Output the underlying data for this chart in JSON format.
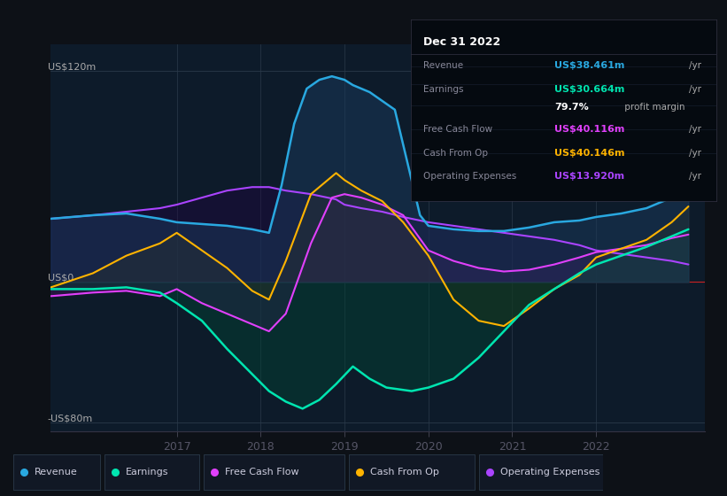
{
  "bg_color": "#0d1117",
  "chart_bg": "#0d1b2a",
  "ylim": [
    -85,
    135
  ],
  "xlim": [
    2015.5,
    2023.3
  ],
  "x_ticks": [
    2017,
    2018,
    2019,
    2020,
    2021,
    2022
  ],
  "y_labels": [
    {
      "y": 120,
      "label": "US$120m"
    },
    {
      "y": 0,
      "label": "US$0"
    },
    {
      "y": -80,
      "label": "-US$80m"
    }
  ],
  "series": {
    "revenue": {
      "x": [
        2015.5,
        2016.0,
        2016.4,
        2016.8,
        2017.0,
        2017.3,
        2017.6,
        2017.9,
        2018.1,
        2018.25,
        2018.4,
        2018.55,
        2018.7,
        2018.85,
        2019.0,
        2019.1,
        2019.3,
        2019.6,
        2019.9,
        2020.0,
        2020.3,
        2020.6,
        2020.9,
        2021.2,
        2021.5,
        2021.8,
        2022.0,
        2022.3,
        2022.6,
        2022.9,
        2023.1
      ],
      "y": [
        36,
        38,
        39,
        36,
        34,
        33,
        32,
        30,
        28,
        55,
        90,
        110,
        115,
        117,
        115,
        112,
        108,
        98,
        38,
        32,
        30,
        29,
        29,
        31,
        34,
        35,
        37,
        39,
        42,
        48,
        52
      ],
      "line_color": "#29a8e0",
      "fill_color": "#1a3a5c",
      "fill_alpha": 0.5,
      "lw": 1.8
    },
    "earnings": {
      "x": [
        2015.5,
        2016.0,
        2016.4,
        2016.8,
        2017.0,
        2017.3,
        2017.6,
        2017.85,
        2018.1,
        2018.3,
        2018.5,
        2018.7,
        2018.9,
        2019.1,
        2019.3,
        2019.5,
        2019.8,
        2020.0,
        2020.3,
        2020.6,
        2020.9,
        2021.2,
        2021.5,
        2021.8,
        2022.0,
        2022.3,
        2022.6,
        2022.9,
        2023.1
      ],
      "y": [
        -4,
        -4,
        -3,
        -6,
        -12,
        -22,
        -38,
        -50,
        -62,
        -68,
        -72,
        -67,
        -58,
        -48,
        -55,
        -60,
        -62,
        -60,
        -55,
        -43,
        -28,
        -13,
        -4,
        5,
        10,
        15,
        20,
        26,
        30
      ],
      "line_color": "#00e5b0",
      "fill_color": "#004433",
      "fill_alpha": 0.45,
      "lw": 1.8
    },
    "free_cash_flow": {
      "x": [
        2015.5,
        2016.0,
        2016.4,
        2016.8,
        2017.0,
        2017.3,
        2017.6,
        2017.9,
        2018.1,
        2018.3,
        2018.6,
        2018.85,
        2019.0,
        2019.2,
        2019.45,
        2019.7,
        2020.0,
        2020.3,
        2020.6,
        2020.9,
        2021.2,
        2021.5,
        2021.8,
        2022.0,
        2022.3,
        2022.6,
        2022.9,
        2023.1
      ],
      "y": [
        -8,
        -6,
        -5,
        -8,
        -4,
        -12,
        -18,
        -24,
        -28,
        -18,
        22,
        48,
        50,
        48,
        44,
        38,
        18,
        12,
        8,
        6,
        7,
        10,
        14,
        17,
        19,
        21,
        25,
        27
      ],
      "line_color": "#e040fb",
      "fill_color": "#4a1060",
      "fill_alpha": 0.4,
      "lw": 1.5
    },
    "cash_from_op": {
      "x": [
        2015.5,
        2016.0,
        2016.4,
        2016.8,
        2017.0,
        2017.3,
        2017.6,
        2017.9,
        2018.1,
        2018.3,
        2018.6,
        2018.9,
        2019.0,
        2019.2,
        2019.45,
        2019.7,
        2020.0,
        2020.3,
        2020.6,
        2020.9,
        2021.2,
        2021.5,
        2021.8,
        2022.0,
        2022.3,
        2022.6,
        2022.9,
        2023.1
      ],
      "y": [
        -3,
        5,
        15,
        22,
        28,
        18,
        8,
        -5,
        -10,
        12,
        50,
        62,
        58,
        52,
        46,
        34,
        15,
        -10,
        -22,
        -25,
        -15,
        -4,
        4,
        14,
        19,
        24,
        34,
        43
      ],
      "line_color": "#ffb300",
      "fill_color": "#3a2800",
      "fill_alpha": 0.4,
      "lw": 1.5
    },
    "operating_expenses": {
      "x": [
        2015.5,
        2016.0,
        2016.4,
        2016.8,
        2017.0,
        2017.3,
        2017.6,
        2017.9,
        2018.1,
        2018.3,
        2018.6,
        2018.9,
        2019.0,
        2019.2,
        2019.45,
        2019.7,
        2020.0,
        2020.3,
        2020.6,
        2020.9,
        2021.2,
        2021.5,
        2021.8,
        2022.0,
        2022.3,
        2022.6,
        2022.9,
        2023.1
      ],
      "y": [
        36,
        38,
        40,
        42,
        44,
        48,
        52,
        54,
        54,
        52,
        50,
        47,
        44,
        42,
        40,
        37,
        34,
        32,
        30,
        28,
        26,
        24,
        21,
        18,
        16,
        14,
        12,
        10
      ],
      "line_color": "#aa44ff",
      "fill_color": "#220044",
      "fill_alpha": 0.35,
      "lw": 1.5
    }
  },
  "legend": [
    {
      "label": "Revenue",
      "color": "#29a8e0"
    },
    {
      "label": "Earnings",
      "color": "#00e5b0"
    },
    {
      "label": "Free Cash Flow",
      "color": "#e040fb"
    },
    {
      "label": "Cash From Op",
      "color": "#ffb300"
    },
    {
      "label": "Operating Expenses",
      "color": "#aa44ff"
    }
  ],
  "infobox": {
    "title": "Dec 31 2022",
    "rows": [
      {
        "label": "Revenue",
        "value": "US$38.461m",
        "unit": "/yr",
        "val_color": "#29a8e0"
      },
      {
        "label": "Earnings",
        "value": "US$30.664m",
        "unit": "/yr",
        "val_color": "#00e5b0"
      },
      {
        "label": "",
        "value": "79.7%",
        "unit": " profit margin",
        "val_color": "#ffffff"
      },
      {
        "label": "Free Cash Flow",
        "value": "US$40.116m",
        "unit": "/yr",
        "val_color": "#e040fb"
      },
      {
        "label": "Cash From Op",
        "value": "US$40.146m",
        "unit": "/yr",
        "val_color": "#ffb300"
      },
      {
        "label": "Operating Expenses",
        "value": "US$13.920m",
        "unit": "/yr",
        "val_color": "#aa44ff"
      }
    ]
  }
}
